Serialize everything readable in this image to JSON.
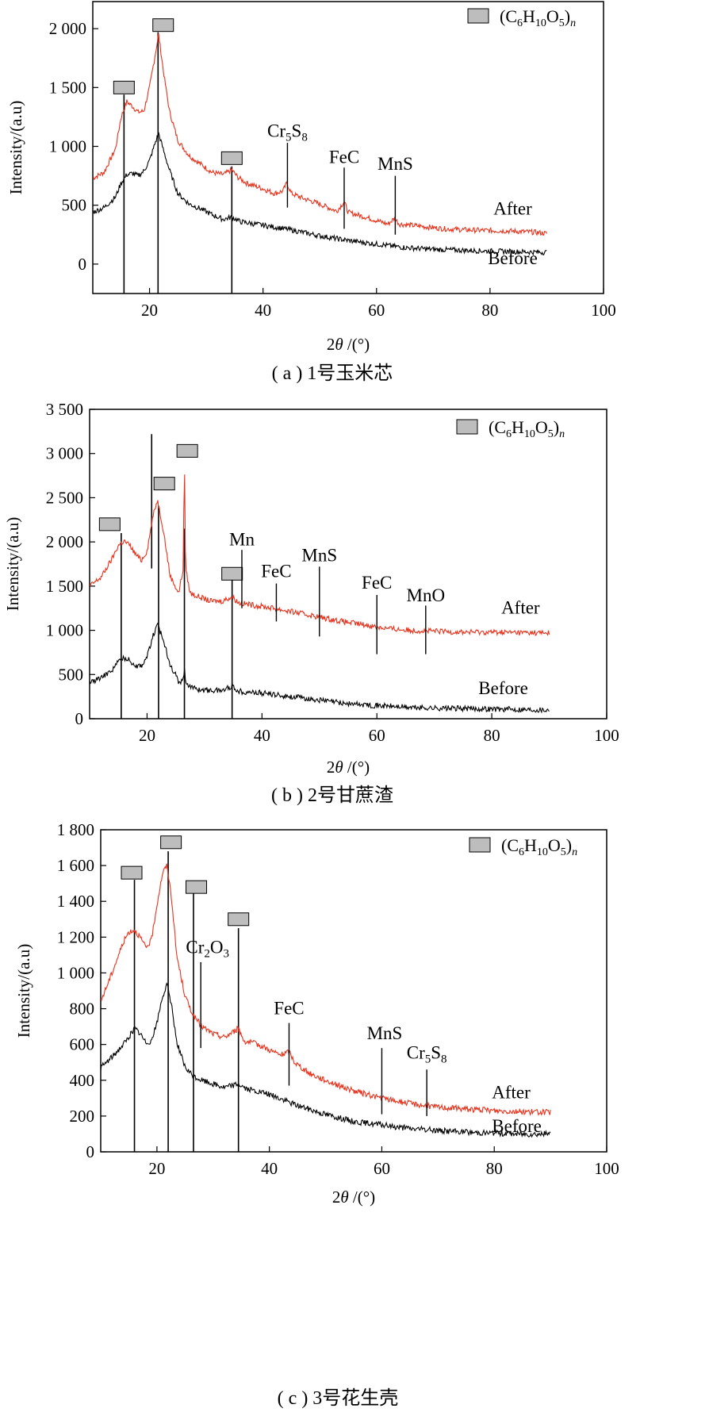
{
  "colors": {
    "after": "#e8321c",
    "before": "#000000",
    "marker_fill": "#bdbdbd",
    "frame": "#000000"
  },
  "chart_data": [
    {
      "type": "line",
      "caption": "( a ) 1号玉米芯",
      "xlabel_prefix": "2",
      "xlabel_theta": "θ",
      "xlabel_suffix": " /(°)",
      "ylabel": "Intensity/(a.u)",
      "xlim": [
        10,
        100
      ],
      "ylim": [
        -250,
        2230
      ],
      "xticks": [
        20,
        40,
        60,
        80,
        100
      ],
      "yticks": [
        0,
        500,
        1000,
        1500,
        2000
      ],
      "ytick_labels": [
        "0",
        "500",
        "1 000",
        "1 500",
        "2 000"
      ],
      "legend": {
        "label": "(C",
        "sub1": "6",
        "mid1": "H",
        "sub2": "10",
        "mid2": "O",
        "sub3": "5",
        "tail": ")",
        "subn": "n",
        "position": "top-right"
      },
      "series": [
        {
          "name": "After",
          "color_key": "after",
          "x": [
            10,
            12,
            14,
            15,
            16,
            17,
            18,
            19,
            20,
            21,
            21.6,
            22.5,
            23.5,
            25,
            27,
            29,
            31,
            33,
            34.5,
            35.5,
            37,
            40,
            42,
            43.5,
            44.2,
            45,
            47,
            50,
            53,
            54.3,
            55,
            58,
            60,
            62,
            63.2,
            64,
            68,
            72,
            76,
            80,
            84,
            88,
            90
          ],
          "y": [
            730,
            780,
            980,
            1250,
            1380,
            1340,
            1290,
            1300,
            1500,
            1780,
            1950,
            1620,
            1300,
            1050,
            920,
            850,
            780,
            760,
            800,
            740,
            690,
            640,
            600,
            620,
            690,
            600,
            560,
            510,
            450,
            530,
            440,
            400,
            370,
            340,
            390,
            340,
            320,
            300,
            290,
            285,
            280,
            270,
            260
          ]
        },
        {
          "name": "Before",
          "color_key": "before",
          "x": [
            10,
            12,
            14,
            15,
            16,
            17,
            18,
            19,
            20,
            21,
            21.6,
            22.5,
            23.5,
            25,
            27,
            29,
            31,
            33,
            34.5,
            36,
            40,
            45,
            50,
            55,
            60,
            65,
            70,
            75,
            80,
            85,
            90
          ],
          "y": [
            440,
            480,
            570,
            690,
            760,
            770,
            750,
            790,
            880,
            1030,
            1110,
            960,
            800,
            600,
            510,
            470,
            420,
            380,
            400,
            360,
            330,
            290,
            240,
            200,
            170,
            140,
            125,
            118,
            110,
            105,
            100
          ]
        }
      ],
      "series_labels": [
        {
          "text": "After",
          "x": 84,
          "y": 420
        },
        {
          "text": "Before",
          "x": 84,
          "y": 0
        }
      ],
      "markers": [
        {
          "x": 15.5,
          "y": 1500
        },
        {
          "x": 22.4,
          "y": 2030
        },
        {
          "x": 34.5,
          "y": 900
        }
      ],
      "reflines": [
        {
          "x": 15.5,
          "y1": -250,
          "y2": 1440
        },
        {
          "x": 21.5,
          "y1": -250,
          "y2": 1970
        },
        {
          "x": 34.5,
          "y1": -250,
          "y2": 830
        }
      ],
      "phases": [
        {
          "label": "Cr",
          "sub": "5",
          "label2": "S",
          "sub2": "8",
          "x": 44.3,
          "y_bottom": 480,
          "y_top": 1030,
          "text_x": 44.3,
          "text_y": 1080
        },
        {
          "label": "FeC",
          "x": 54.3,
          "y_bottom": 300,
          "y_top": 820,
          "text_x": 54.3,
          "text_y": 860
        },
        {
          "label": "MnS",
          "x": 63.3,
          "y_bottom": 250,
          "y_top": 750,
          "text_x": 63.3,
          "text_y": 800
        }
      ]
    },
    {
      "type": "line",
      "caption": "( b ) 2号甘蔗渣",
      "xlabel_prefix": "2",
      "xlabel_theta": "θ",
      "xlabel_suffix": " /(°)",
      "ylabel": "Intensity/(a.u)",
      "xlim": [
        10,
        100
      ],
      "ylim": [
        0,
        3500
      ],
      "xticks": [
        20,
        40,
        60,
        80,
        100
      ],
      "yticks": [
        0,
        500,
        1000,
        1500,
        2000,
        2500,
        3000,
        3500
      ],
      "ytick_labels": [
        "0",
        "500",
        "1 000",
        "1 500",
        "2 000",
        "2 500",
        "3 000",
        "3 500"
      ],
      "legend": {
        "label": "(C",
        "sub1": "6",
        "mid1": "H",
        "sub2": "10",
        "mid2": "O",
        "sub3": "5",
        "tail": ")",
        "subn": "n",
        "position": "top-right"
      },
      "series": [
        {
          "name": "After",
          "color_key": "after",
          "x": [
            10,
            12,
            14,
            15,
            16,
            17,
            18,
            19,
            20,
            21,
            21.8,
            22.8,
            24,
            25.5,
            26.3,
            26.5,
            26.7,
            27.5,
            29,
            31,
            33,
            34.8,
            36,
            38,
            42,
            46,
            50,
            54,
            58,
            62,
            66,
            70,
            75,
            80,
            85,
            90
          ],
          "y": [
            1500,
            1600,
            1820,
            1960,
            2010,
            1960,
            1860,
            1790,
            1900,
            2280,
            2480,
            2150,
            1620,
            1420,
            1700,
            2980,
            1700,
            1420,
            1380,
            1330,
            1330,
            1380,
            1310,
            1290,
            1250,
            1200,
            1150,
            1100,
            1060,
            1020,
            1000,
            990,
            980,
            980,
            975,
            970
          ]
        },
        {
          "name": "Before",
          "color_key": "before",
          "x": [
            10,
            12,
            14,
            15,
            16,
            17,
            18,
            19,
            20,
            21,
            21.8,
            22.8,
            24,
            25.5,
            26.3,
            26.5,
            26.7,
            27.5,
            29,
            31,
            33,
            34.8,
            36,
            40,
            45,
            50,
            55,
            60,
            65,
            70,
            75,
            80,
            85,
            90
          ],
          "y": [
            410,
            460,
            560,
            650,
            690,
            660,
            600,
            600,
            700,
            930,
            1060,
            900,
            620,
            420,
            430,
            580,
            430,
            360,
            330,
            320,
            320,
            370,
            310,
            290,
            250,
            210,
            170,
            150,
            130,
            120,
            115,
            110,
            105,
            100
          ]
        }
      ],
      "series_labels": [
        {
          "text": "After",
          "x": 85,
          "y": 1190
        },
        {
          "text": "Before",
          "x": 82,
          "y": 280
        }
      ],
      "markers": [
        {
          "x": 13.5,
          "y": 2200
        },
        {
          "x": 23,
          "y": 2660
        },
        {
          "x": 27,
          "y": 3030
        },
        {
          "x": 34.8,
          "y": 1640
        }
      ],
      "reflines": [
        {
          "x": 15.5,
          "y1": 0,
          "y2": 2100
        },
        {
          "x": 20.8,
          "y1": 1700,
          "y2": 3220
        },
        {
          "x": 22,
          "y1": 0,
          "y2": 2410
        },
        {
          "x": 26.5,
          "y1": 0,
          "y2": 2150
        },
        {
          "x": 34.8,
          "y1": 0,
          "y2": 1570
        }
      ],
      "phases": [
        {
          "label": "Mn",
          "x": 36.5,
          "y_bottom": 1250,
          "y_top": 1910,
          "text_x": 36.5,
          "text_y": 1960
        },
        {
          "label": "FeC",
          "x": 42.5,
          "y_bottom": 1100,
          "y_top": 1530,
          "text_x": 42.5,
          "text_y": 1600
        },
        {
          "label": "MnS",
          "x": 50,
          "y_bottom": 930,
          "y_top": 1720,
          "text_x": 50,
          "text_y": 1780
        },
        {
          "label": "FeC",
          "x": 60,
          "y_bottom": 730,
          "y_top": 1400,
          "text_x": 60,
          "text_y": 1470
        },
        {
          "label": "MnO",
          "x": 68.5,
          "y_bottom": 730,
          "y_top": 1280,
          "text_x": 68.5,
          "text_y": 1330
        }
      ]
    },
    {
      "type": "line",
      "caption": "( c ) 3号花生壳",
      "xlabel_prefix": "2",
      "xlabel_theta": "θ",
      "xlabel_suffix": " /(°)",
      "ylabel": "Intensity/(a.u)",
      "xlim": [
        10,
        100
      ],
      "ylim": [
        0,
        1800
      ],
      "xticks": [
        20,
        40,
        60,
        80,
        100
      ],
      "yticks": [
        0,
        200,
        400,
        600,
        800,
        1000,
        1200,
        1400,
        1600,
        1800
      ],
      "ytick_labels": [
        "0",
        "200",
        "400",
        "600",
        "800",
        "1 000",
        "1 200",
        "1 400",
        "1 600",
        "1 800"
      ],
      "legend": {
        "label": "(C",
        "sub1": "6",
        "mid1": "H",
        "sub2": "10",
        "mid2": "O",
        "sub3": "5",
        "tail": ")",
        "subn": "n",
        "position": "top-right"
      },
      "series": [
        {
          "name": "After",
          "color_key": "after",
          "x": [
            10,
            12,
            14,
            15,
            16,
            17,
            18,
            19,
            20,
            21,
            21.8,
            22.6,
            23.5,
            25,
            26.5,
            28,
            30,
            32,
            34.5,
            35.5,
            38,
            40,
            42,
            43.5,
            44.5,
            47,
            50,
            55,
            60,
            65,
            70,
            75,
            80,
            85,
            90
          ],
          "y": [
            840,
            1000,
            1170,
            1230,
            1240,
            1200,
            1140,
            1180,
            1380,
            1560,
            1600,
            1420,
            1100,
            870,
            760,
            700,
            660,
            640,
            690,
            620,
            600,
            570,
            540,
            560,
            500,
            440,
            400,
            340,
            300,
            270,
            250,
            240,
            230,
            225,
            220
          ]
        },
        {
          "name": "Before",
          "color_key": "before",
          "x": [
            10,
            12,
            14,
            15,
            16,
            17,
            18,
            19,
            20,
            21,
            21.8,
            22.6,
            23.5,
            25,
            26.5,
            28,
            30,
            32,
            34.5,
            36,
            40,
            45,
            50,
            55,
            60,
            65,
            70,
            75,
            80,
            85,
            90
          ],
          "y": [
            470,
            530,
            600,
            640,
            690,
            660,
            610,
            620,
            720,
            870,
            930,
            820,
            620,
            470,
            420,
            400,
            380,
            360,
            380,
            350,
            320,
            260,
            210,
            170,
            150,
            130,
            120,
            110,
            105,
            100,
            100
          ]
        }
      ],
      "series_labels": [
        {
          "text": "After",
          "x": 83,
          "y": 300
        },
        {
          "text": "Before",
          "x": 84,
          "y": 110
        }
      ],
      "markers": [
        {
          "x": 15.5,
          "y": 1560
        },
        {
          "x": 22.5,
          "y": 1730
        },
        {
          "x": 27,
          "y": 1480
        },
        {
          "x": 34.5,
          "y": 1300
        }
      ],
      "reflines": [
        {
          "x": 16,
          "y1": 0,
          "y2": 1520
        },
        {
          "x": 22,
          "y1": 0,
          "y2": 1680
        },
        {
          "x": 26.5,
          "y1": 0,
          "y2": 1450
        },
        {
          "x": 34.5,
          "y1": 0,
          "y2": 1250
        }
      ],
      "phases": [
        {
          "label": "Cr",
          "sub": "2",
          "label2": "O",
          "sub2": "3",
          "x": 27.8,
          "y_bottom": 580,
          "y_top": 1060,
          "text_x": 29,
          "text_y": 1110
        },
        {
          "label": "FeC",
          "x": 43.5,
          "y_bottom": 370,
          "y_top": 720,
          "text_x": 43.5,
          "text_y": 770
        },
        {
          "label": "MnS",
          "x": 60,
          "y_bottom": 210,
          "y_top": 580,
          "text_x": 60.5,
          "text_y": 630
        },
        {
          "label": "Cr",
          "sub": "5",
          "label2": "S",
          "sub2": "8",
          "x": 68,
          "y_bottom": 200,
          "y_top": 460,
          "text_x": 68,
          "text_y": 520
        }
      ]
    }
  ]
}
